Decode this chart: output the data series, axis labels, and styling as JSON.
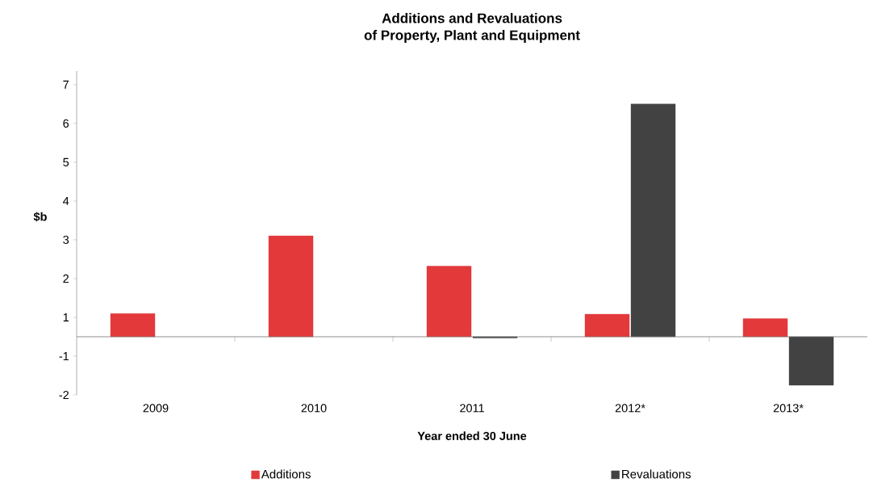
{
  "chart_data": {
    "type": "bar",
    "title": "Additions and Revaluations",
    "subtitle": "of Property, Plant and Equipment",
    "xlabel": "Year ended 30 June",
    "ylabel": "$b",
    "categories": [
      "2009",
      "2010",
      "2011",
      "2012*",
      "2013*"
    ],
    "series": [
      {
        "name": "Additions",
        "color": "#e3393b",
        "values": [
          0.6,
          2.6,
          1.82,
          0.58,
          0.47
        ]
      },
      {
        "name": "Revaluations",
        "color": "#424242",
        "values": [
          null,
          null,
          -0.03,
          6.0,
          -1.25
        ]
      }
    ],
    "ylim": [
      -1.5,
      6.85
    ],
    "yticks": [
      {
        "value": 6.5,
        "label": "7"
      },
      {
        "value": 5.5,
        "label": "6"
      },
      {
        "value": 4.5,
        "label": "5"
      },
      {
        "value": 3.5,
        "label": "4"
      },
      {
        "value": 2.5,
        "label": "3"
      },
      {
        "value": 1.5,
        "label": "2"
      },
      {
        "value": 0.5,
        "label": "1"
      },
      {
        "value": -0.5,
        "label": "-1"
      },
      {
        "value": -1.5,
        "label": "-2"
      }
    ],
    "legend": "bottom",
    "grid": false
  }
}
